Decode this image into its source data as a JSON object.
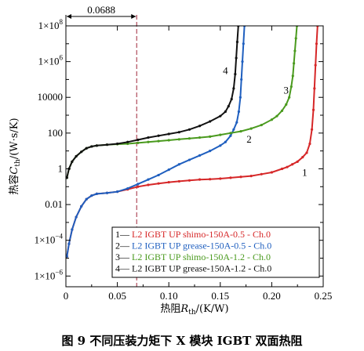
{
  "chart_data": {
    "type": "line",
    "title": "",
    "caption": {
      "number": "图 9",
      "text": "不同压装力矩下 X 模块 IGBT 双面热阻"
    },
    "xlabel": {
      "main": "热阻",
      "symbol": "R",
      "sub": "th",
      "unit": "/(K/W)"
    },
    "ylabel": {
      "main": "热容",
      "symbol": "C",
      "sub": "th",
      "unit": "/(W·s/K)"
    },
    "xlim": [
      0,
      0.25
    ],
    "x_scale": "linear",
    "x_ticks": [
      {
        "value": 0,
        "label": "0"
      },
      {
        "value": 0.05,
        "label": "0.05"
      },
      {
        "value": 0.1,
        "label": "0.10"
      },
      {
        "value": 0.15,
        "label": "0.15"
      },
      {
        "value": 0.2,
        "label": "0.20"
      },
      {
        "value": 0.25,
        "label": "0.25"
      }
    ],
    "ylim": [
      -6.6,
      8.0
    ],
    "y_scale": "log10",
    "y_ticks": [
      {
        "exp": 8,
        "label": "1×10",
        "sup": "8"
      },
      {
        "exp": 6,
        "label": "1×10",
        "sup": "6"
      },
      {
        "exp": 4,
        "label": "10000",
        "sup": ""
      },
      {
        "exp": 2,
        "label": "100",
        "sup": ""
      },
      {
        "exp": 0,
        "label": "1",
        "sup": ""
      },
      {
        "exp": -2,
        "label": "0.01",
        "sup": ""
      },
      {
        "exp": -4,
        "label": "1×10",
        "sup": "−4"
      },
      {
        "exp": -6,
        "label": "1×10",
        "sup": "−6"
      }
    ],
    "grid": false,
    "marker": {
      "x": 0.0688,
      "label": "0.0688",
      "color": "#b04a5a"
    },
    "legend": {
      "placement": "bottom-right",
      "entries": [
        {
          "num": "1",
          "prefix": "—",
          "text": "L2 IGBT UP shimo-150A-0.5 - Ch.0",
          "color": "#d62728"
        },
        {
          "num": "2",
          "prefix": "—",
          "text": "L2 IGBT UP grease-150A-0.5 - Ch.0",
          "color": "#1f5fbf"
        },
        {
          "num": "3",
          "prefix": "—",
          "text": "L2 IGBT UP shimo-150A-1.2 - Ch.0",
          "color": "#4a9a1e"
        },
        {
          "num": "4",
          "prefix": "—",
          "text": "L2 IGBT UP grease-150A-1.2 - Ch.0",
          "color": "#111111"
        }
      ]
    },
    "series": [
      {
        "label_tag": "1",
        "color": "#d62728",
        "label_at": {
          "x": 0.232,
          "y": 0.4
        },
        "x": [
          0.001,
          0.003,
          0.006,
          0.01,
          0.015,
          0.02,
          0.025,
          0.03,
          0.04,
          0.05,
          0.06,
          0.07,
          0.08,
          0.09,
          0.1,
          0.11,
          0.12,
          0.13,
          0.14,
          0.15,
          0.16,
          0.17,
          0.18,
          0.19,
          0.2,
          0.21,
          0.215,
          0.22,
          0.225,
          0.23,
          0.234,
          0.237,
          0.239,
          0.2405,
          0.2415,
          0.2425,
          0.2435,
          0.2445
        ],
        "y": [
          -4.9,
          -4.2,
          -3.4,
          -2.7,
          -2.1,
          -1.7,
          -1.5,
          -1.4,
          -1.35,
          -1.28,
          -1.15,
          -1.0,
          -0.9,
          -0.82,
          -0.75,
          -0.7,
          -0.65,
          -0.6,
          -0.58,
          -0.55,
          -0.5,
          -0.45,
          -0.4,
          -0.3,
          -0.2,
          0.0,
          0.1,
          0.25,
          0.4,
          0.65,
          0.9,
          1.4,
          2.2,
          3.3,
          4.5,
          5.8,
          7.0,
          8.0
        ]
      },
      {
        "label_tag": "2",
        "color": "#1f5fbf",
        "label_at": {
          "x": 0.178,
          "y": 29
        },
        "x": [
          0.001,
          0.003,
          0.006,
          0.01,
          0.015,
          0.02,
          0.025,
          0.03,
          0.04,
          0.05,
          0.06,
          0.07,
          0.08,
          0.09,
          0.1,
          0.11,
          0.12,
          0.13,
          0.14,
          0.15,
          0.155,
          0.16,
          0.163,
          0.166,
          0.168,
          0.1695,
          0.1705,
          0.1715,
          0.1725,
          0.1735
        ],
        "y": [
          -4.9,
          -4.2,
          -3.4,
          -2.7,
          -2.1,
          -1.7,
          -1.5,
          -1.4,
          -1.35,
          -1.28,
          -1.1,
          -0.85,
          -0.6,
          -0.35,
          -0.05,
          0.25,
          0.5,
          0.75,
          1.0,
          1.3,
          1.5,
          1.85,
          2.2,
          2.6,
          3.2,
          4.0,
          5.0,
          6.0,
          7.0,
          8.0
        ]
      },
      {
        "label_tag": "3",
        "color": "#4a9a1e",
        "label_at": {
          "x": 0.214,
          "y": 16000
        },
        "x": [
          0.001,
          0.003,
          0.006,
          0.01,
          0.015,
          0.02,
          0.025,
          0.03,
          0.04,
          0.05,
          0.06,
          0.07,
          0.08,
          0.09,
          0.1,
          0.11,
          0.12,
          0.13,
          0.14,
          0.15,
          0.16,
          0.17,
          0.18,
          0.19,
          0.2,
          0.205,
          0.21,
          0.214,
          0.217,
          0.219,
          0.2205,
          0.2215,
          0.2225,
          0.2235,
          0.2245
        ],
        "y": [
          -0.5,
          0.0,
          0.4,
          0.7,
          0.95,
          1.15,
          1.25,
          1.3,
          1.35,
          1.38,
          1.4,
          1.45,
          1.5,
          1.55,
          1.6,
          1.65,
          1.7,
          1.75,
          1.8,
          1.9,
          2.0,
          2.1,
          2.25,
          2.45,
          2.75,
          2.95,
          3.25,
          3.6,
          4.0,
          4.6,
          5.2,
          5.9,
          6.6,
          7.3,
          8.0
        ]
      },
      {
        "label_tag": "4",
        "color": "#111111",
        "label_at": {
          "x": 0.155,
          "y": 200000
        },
        "x": [
          0.001,
          0.003,
          0.006,
          0.01,
          0.015,
          0.02,
          0.025,
          0.03,
          0.04,
          0.05,
          0.06,
          0.07,
          0.08,
          0.09,
          0.1,
          0.11,
          0.12,
          0.13,
          0.14,
          0.15,
          0.155,
          0.158,
          0.161,
          0.163,
          0.1645,
          0.1655,
          0.1665,
          0.1675
        ],
        "y": [
          -0.5,
          0.0,
          0.4,
          0.7,
          0.95,
          1.15,
          1.25,
          1.3,
          1.35,
          1.4,
          1.5,
          1.62,
          1.75,
          1.85,
          1.95,
          2.05,
          2.2,
          2.4,
          2.65,
          2.95,
          3.2,
          3.5,
          3.9,
          4.5,
          5.3,
          6.2,
          7.1,
          8.0
        ]
      }
    ]
  }
}
